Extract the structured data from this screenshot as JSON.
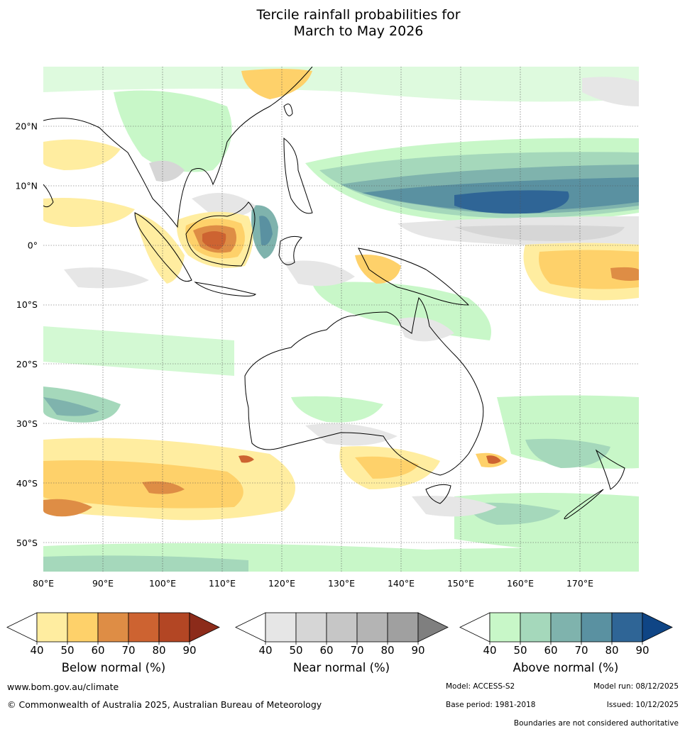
{
  "title_line1": "Tercile rainfall probabilities for",
  "title_line2": "March to May 2026",
  "map": {
    "lon_range": [
      80,
      180
    ],
    "lat_range": [
      -55,
      30
    ],
    "lon_ticks": [
      "80°E",
      "90°E",
      "100°E",
      "110°E",
      "120°E",
      "130°E",
      "140°E",
      "150°E",
      "160°E",
      "170°E"
    ],
    "lat_ticks": [
      "20°N",
      "10°N",
      "0°",
      "10°S",
      "20°S",
      "30°S",
      "40°S",
      "50°S"
    ],
    "grid": true
  },
  "colorbars": [
    {
      "label": "Below normal (%)",
      "ticks": [
        "40",
        "50",
        "60",
        "70",
        "80",
        "90"
      ],
      "colors": [
        "#ffffff",
        "#ffeda0",
        "#fed16a",
        "#de8d45",
        "#cd6331",
        "#b34624",
        "#8c2b1a"
      ]
    },
    {
      "label": "Near normal (%)",
      "ticks": [
        "40",
        "50",
        "60",
        "70",
        "80",
        "90"
      ],
      "colors": [
        "#ffffff",
        "#e6e6e6",
        "#d6d6d6",
        "#c6c6c6",
        "#b4b4b4",
        "#a0a0a0",
        "#7f7f7f"
      ]
    },
    {
      "label": "Above normal (%)",
      "ticks": [
        "40",
        "50",
        "60",
        "70",
        "80",
        "90"
      ],
      "colors": [
        "#ffffff",
        "#c8f7c8",
        "#a5d8bb",
        "#7fb3ad",
        "#5a91a1",
        "#2f6596",
        "#0f4585"
      ]
    }
  ],
  "footer": {
    "website": "www.bom.gov.au/climate",
    "copyright": "© Commonwealth of Australia 2025, Australian Bureau of Meteorology",
    "model": "Model: ACCESS-S2",
    "model_run": "Model run: 08/12/2025",
    "base_period": "Base period: 1981-2018",
    "issued": "Issued: 10/12/2025",
    "disclaimer": "Boundaries are not considered authoritative"
  }
}
